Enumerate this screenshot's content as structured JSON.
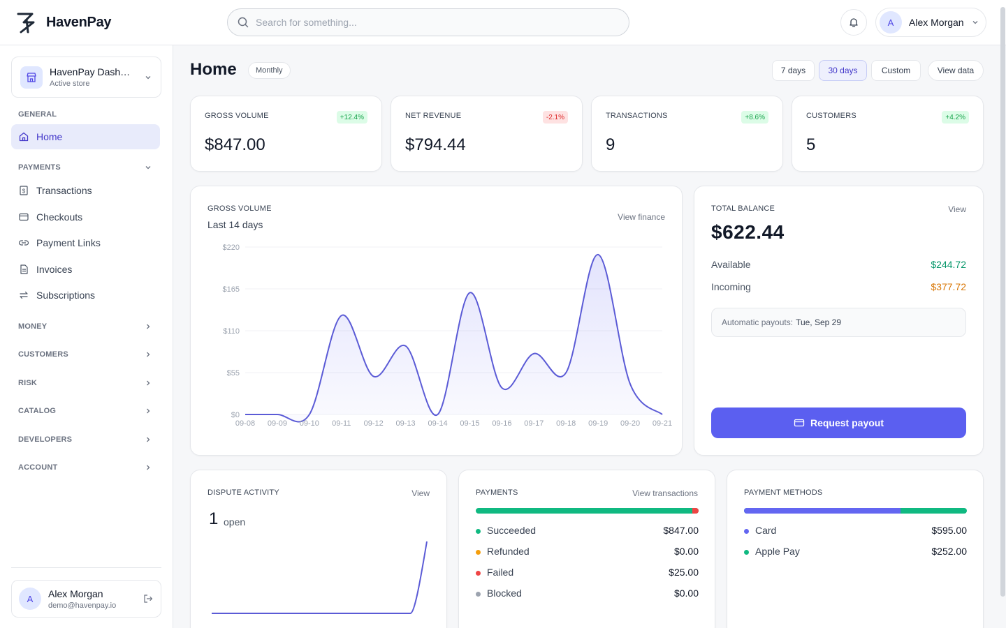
{
  "brand": {
    "name": "HavenPay"
  },
  "search": {
    "placeholder": "Search for something..."
  },
  "topbar": {
    "user_initial": "A",
    "user_name": "Alex Morgan"
  },
  "sidebar": {
    "store": {
      "name": "HavenPay Dashboard",
      "status": "Active store"
    },
    "general_label": "GENERAL",
    "home_label": "Home",
    "payments_label": "PAYMENTS",
    "payments_items": [
      "Transactions",
      "Checkouts",
      "Payment Links",
      "Invoices",
      "Subscriptions"
    ],
    "sections": [
      "MONEY",
      "CUSTOMERS",
      "RISK",
      "CATALOG",
      "DEVELOPERS",
      "ACCOUNT"
    ],
    "user": {
      "initial": "A",
      "name": "Alex Morgan",
      "email": "demo@havenpay.io"
    }
  },
  "page": {
    "title": "Home",
    "period": "Monthly",
    "ranges": [
      "7 days",
      "30 days",
      "Custom"
    ],
    "view_data": "View data"
  },
  "kpis": [
    {
      "label": "GROSS VOLUME",
      "change": "+12.4%",
      "value": "$847.00",
      "trend": "up"
    },
    {
      "label": "NET REVENUE",
      "change": "-2.1%",
      "value": "$794.44",
      "trend": "down"
    },
    {
      "label": "TRANSACTIONS",
      "change": "+8.6%",
      "value": "9",
      "trend": "up"
    },
    {
      "label": "CUSTOMERS",
      "change": "+4.2%",
      "value": "5",
      "trend": "up"
    }
  ],
  "gross_volume": {
    "label": "GROSS VOLUME",
    "subtitle": "Last 14 days",
    "link": "View finance"
  },
  "chart_data": {
    "type": "area",
    "title": "GROSS VOLUME",
    "subtitle": "Last 14 days",
    "x": [
      "09-08",
      "09-09",
      "09-10",
      "09-11",
      "09-12",
      "09-13",
      "09-14",
      "09-15",
      "09-16",
      "09-17",
      "09-18",
      "09-19",
      "09-20",
      "09-21"
    ],
    "y_ticks": [
      "$0",
      "$55",
      "$110",
      "$165",
      "$220"
    ],
    "ylim": [
      0,
      220
    ],
    "series": [
      {
        "values": [
          0,
          0,
          0,
          130,
          50,
          90,
          0,
          160,
          35,
          80,
          55,
          210,
          40,
          0
        ]
      }
    ],
    "grid": true,
    "color": "#5b5bd6"
  },
  "balance": {
    "label": "TOTAL BALANCE",
    "link": "View",
    "total": "$622.44",
    "available_label": "Available",
    "available": "$244.72",
    "incoming_label": "Incoming",
    "incoming": "$377.72",
    "payout_label": "Automatic payouts:",
    "payout_date": "Tue, Sep 29",
    "button": "Request payout"
  },
  "disputes": {
    "label": "DISPUTE ACTIVITY",
    "link": "View",
    "count": "1",
    "status": "open",
    "trend": [
      0,
      0,
      0,
      0,
      0,
      0,
      0,
      0,
      0,
      0,
      0,
      0,
      0,
      1
    ]
  },
  "payments": {
    "label": "PAYMENTS",
    "link": "View transactions",
    "items": [
      {
        "name": "Succeeded",
        "amount": "$847.00",
        "color": "#10b981"
      },
      {
        "name": "Refunded",
        "amount": "$0.00",
        "color": "#f59e0b"
      },
      {
        "name": "Failed",
        "amount": "$25.00",
        "color": "#ef4444"
      },
      {
        "name": "Blocked",
        "amount": "$0.00",
        "color": "#9ca3af"
      }
    ]
  },
  "methods": {
    "label": "PAYMENT METHODS",
    "items": [
      {
        "name": "Card",
        "amount": "$595.00",
        "color": "#6366f1"
      },
      {
        "name": "Apple Pay",
        "amount": "$252.00",
        "color": "#10b981"
      }
    ]
  }
}
